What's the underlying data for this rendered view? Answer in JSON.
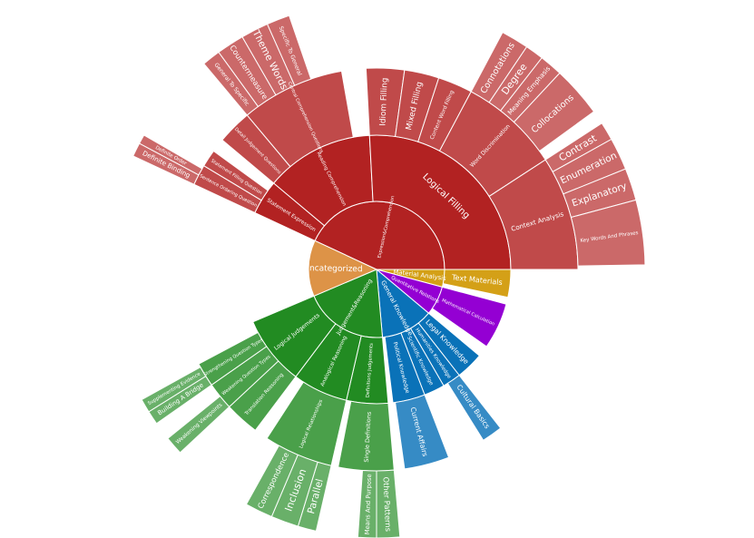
{
  "chart_data": {
    "type": "sunburst",
    "nodes": [
      {
        "name": "Expression&Comprehension",
        "value": 155,
        "color": "#b22222",
        "children": [
          {
            "name": "Statement Expression",
            "value": 15,
            "children": [
              {
                "name": "Sentence Ordering Question",
                "value": 6,
                "children": [
                  {
                    "name": "Definite Binding",
                    "value": 3
                  },
                  {
                    "name": "Definite Order",
                    "value": 2
                  }
                ]
              },
              {
                "name": "Statement Filling Question",
                "value": 5
              }
            ]
          },
          {
            "name": "Reading Comprehension",
            "value": 47,
            "children": [
              {
                "name": "Detail Judgement Questions",
                "value": 10
              },
              {
                "name": "Central Comprehension Questions",
                "value": 30,
                "children": [
                  {
                    "name": "General To Specific",
                    "value": 4
                  },
                  {
                    "name": "Countermeasure",
                    "value": 6
                  },
                  {
                    "name": "Theme Words",
                    "value": 6
                  },
                  {
                    "name": "Specific To General",
                    "value": 5
                  }
                ]
              }
            ]
          },
          {
            "name": "Logical Filling",
            "value": 93,
            "children": [
              {
                "name": "Idiom Filling",
                "value": 11
              },
              {
                "name": "Mixed Filling",
                "value": 10
              },
              {
                "name": "Content Word Filling",
                "value": 10
              },
              {
                "name": "Word Discrimination",
                "value": 29,
                "children": [
                  {
                    "name": "Connotations",
                    "value": 6
                  },
                  {
                    "name": "Degree",
                    "value": 4
                  },
                  {
                    "name": "Meaning Emphasis",
                    "value": 5
                  },
                  {
                    "name": "Collocations",
                    "value": 11
                  }
                ]
              },
              {
                "name": "Context Analysis",
                "value": 33,
                "children": [
                  {
                    "name": "Contrast",
                    "value": 4
                  },
                  {
                    "name": "Enumeration",
                    "value": 7
                  },
                  {
                    "name": "Explanatory",
                    "value": 7
                  },
                  {
                    "name": "Key Words And Phrases",
                    "value": 14
                  }
                ]
              }
            ]
          }
        ]
      },
      {
        "name": "Material Analysis",
        "value": 15,
        "color": "#d4a017",
        "children": [
          {
            "name": "Text Materials",
            "value": 12
          }
        ]
      },
      {
        "name": "Quantitative Relations",
        "value": 25,
        "color": "#9400d3",
        "children": [
          {
            "name": "Mathematical Calculation",
            "value": 20
          }
        ]
      },
      {
        "name": "General Knowledge",
        "value": 45,
        "color": "#0a72b8",
        "children": [
          {
            "name": "Legal Knowledge",
            "value": 12
          },
          {
            "name": "Humanities Knowledge",
            "value": 8,
            "children": [
              {
                "name": "Cultural Basics",
                "value": 6
              }
            ]
          },
          {
            "name": "Scientific Knowledge",
            "value": 9
          },
          {
            "name": "Political Knowledge",
            "value": 14,
            "children": [
              {
                "name": "Current Affairs",
                "value": 13
              }
            ]
          }
        ]
      },
      {
        "name": "Judgement&Reasoning",
        "value": 72,
        "color": "#228b22",
        "children": [
          {
            "name": "Definitions Judgements",
            "value": 18,
            "children": [
              {
                "name": "Single Definitions",
                "value": 16,
                "children": [
                  {
                    "name": "Other Patterns",
                    "value": 5
                  },
                  {
                    "name": "Means And Purpose",
                    "value": 4
                  }
                ]
              }
            ]
          },
          {
            "name": "Analogical Reasoning",
            "value": 24,
            "children": [
              {
                "name": "Logical Relationships",
                "value": 20,
                "children": [
                  {
                    "name": "Parallel",
                    "value": 4
                  },
                  {
                    "name": "Inclusion",
                    "value": 6
                  },
                  {
                    "name": "Correspondence",
                    "value": 6
                  }
                ]
              }
            ]
          },
          {
            "name": "Logical Judgements",
            "value": 30,
            "children": [
              {
                "name": "Translation Reasoning",
                "value": 10
              },
              {
                "name": "Weakening Question Types",
                "value": 8,
                "children": [
                  {
                    "name": "Weakening Viewpoints",
                    "value": 4
                  }
                ]
              },
              {
                "name": "Strengthening Question Types",
                "value": 7,
                "children": [
                  {
                    "name": "Building A Bridge",
                    "value": 3
                  },
                  {
                    "name": "Supplementing Evidence",
                    "value": 3
                  }
                ]
              }
            ]
          }
        ]
      },
      {
        "name": "Uncategorized",
        "value": 48,
        "color": "#dd9347"
      }
    ]
  }
}
